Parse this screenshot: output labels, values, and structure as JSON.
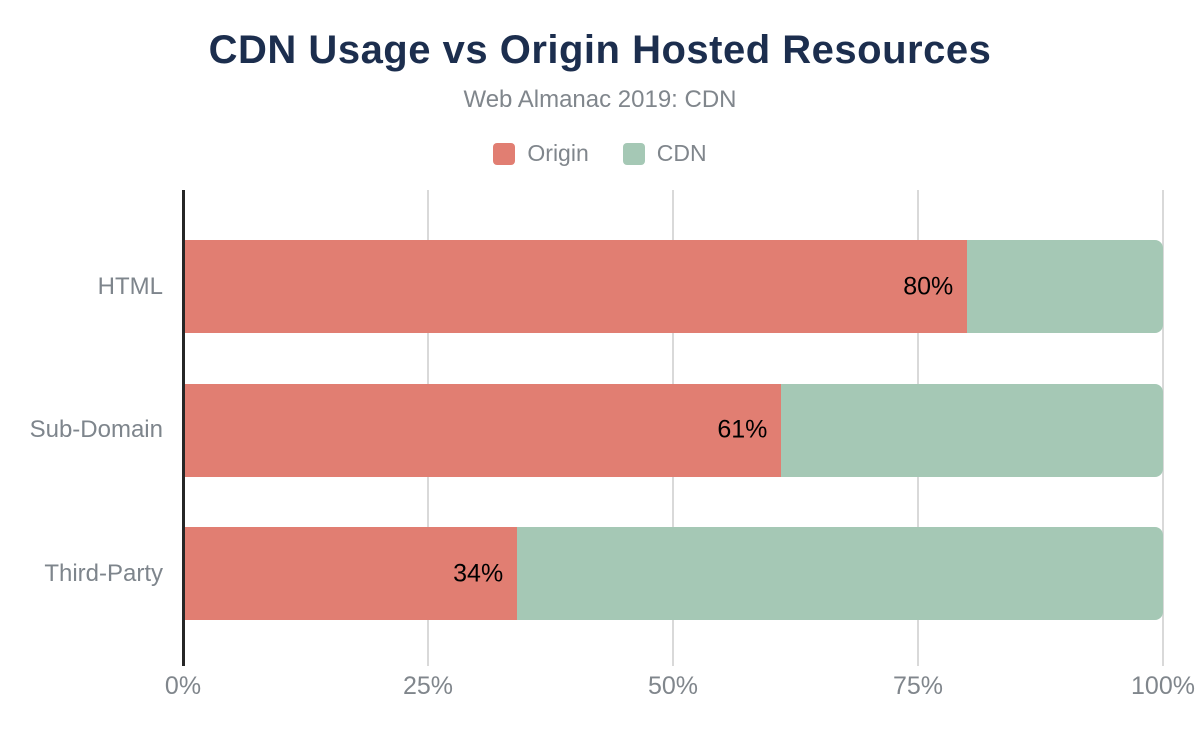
{
  "title": "CDN Usage vs Origin Hosted Resources",
  "subtitle": "Web Almanac 2019: CDN",
  "legend": {
    "items": [
      {
        "label": "Origin",
        "color": "#e17e72"
      },
      {
        "label": "CDN",
        "color": "#a5c8b5"
      }
    ]
  },
  "colors": {
    "origin_series": "#e17e72",
    "cdn_series": "#a5c8b5",
    "title_text": "#1c2e4e",
    "muted_text": "#80868c",
    "gridline": "#d9d9d9",
    "axis_line": "#262626",
    "value_label_text": "#000000",
    "background": "#ffffff"
  },
  "chart_data": {
    "type": "bar",
    "orientation": "horizontal",
    "stacked": true,
    "title": "CDN Usage vs Origin Hosted Resources",
    "subtitle": "Web Almanac 2019: CDN",
    "categories": [
      "HTML",
      "Sub-Domain",
      "Third-Party"
    ],
    "series": [
      {
        "name": "Origin",
        "color": "#e17e72",
        "values": [
          80,
          61,
          34
        ]
      },
      {
        "name": "CDN",
        "color": "#a5c8b5",
        "values": [
          20,
          39,
          66
        ]
      }
    ],
    "value_labels": [
      "80%",
      "61%",
      "34%"
    ],
    "xlabel": "",
    "ylabel": "",
    "xlim": [
      0,
      100
    ],
    "x_ticks": [
      {
        "value": 0,
        "label": "0%"
      },
      {
        "value": 25,
        "label": "25%"
      },
      {
        "value": 50,
        "label": "50%"
      },
      {
        "value": 75,
        "label": "75%"
      },
      {
        "value": 100,
        "label": "100%"
      }
    ],
    "grid": true,
    "legend_position": "top"
  }
}
